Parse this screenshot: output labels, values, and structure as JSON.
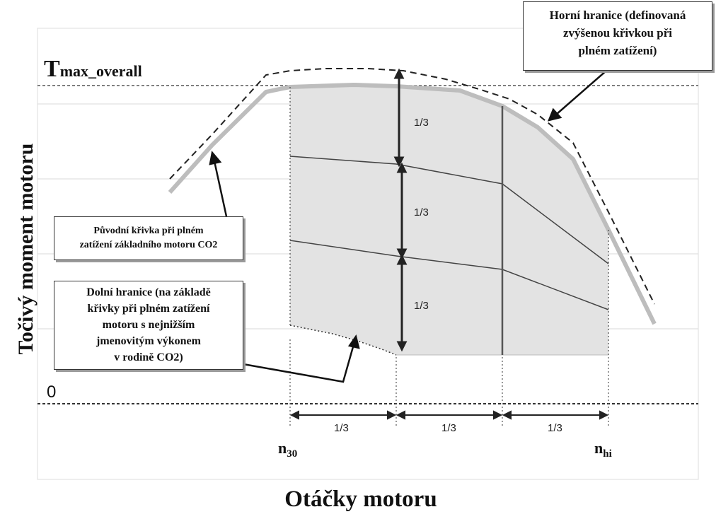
{
  "axes": {
    "y_label": "Točivý moment motoru",
    "x_label": "Otáčky motoru",
    "tmax_label_main": "T",
    "tmax_label_sub": "max_overall",
    "zero_label": "0",
    "n30_main": "n",
    "n30_sub": "30",
    "nhi_main": "n",
    "nhi_sub": "hi"
  },
  "annotations": {
    "upper_boundary": [
      "Horní hranice (definovaná",
      "zvýšenou křivkou při",
      "plném zatížení)"
    ],
    "original_curve": [
      "Původní křivka při plném",
      "zatížení základního motoru CO2"
    ],
    "lower_boundary": [
      "Dolní hranice (na základě",
      "křivky při plném zatížení",
      "motoru s nejnižším",
      "jmenovitým výkonem",
      "v rodině CO2)"
    ]
  },
  "fractions": {
    "vertical": [
      "1/3",
      "1/3",
      "1/3"
    ],
    "horizontal": [
      "1/3",
      "1/3",
      "1/3"
    ]
  },
  "colors": {
    "shaded_region": "#e3e3e3",
    "original_curve": "#bdbdbd",
    "lines": "#333333",
    "grid": "#d9d9d9"
  }
}
